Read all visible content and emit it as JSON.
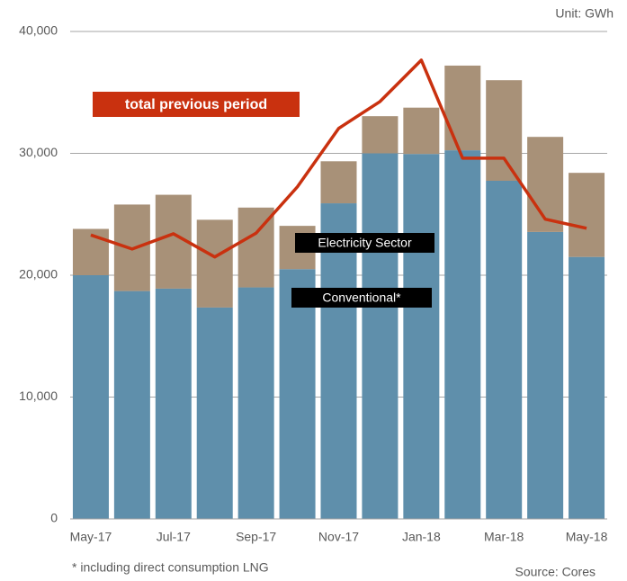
{
  "chart_data": {
    "type": "stacked-bar-line",
    "unit": "Unit: GWh",
    "footnote": "* including direct consumption LNG",
    "source": "Source: Cores",
    "categories": [
      "May-17",
      null,
      "Jul-17",
      null,
      "Sep-17",
      null,
      "Nov-17",
      null,
      "Jan-18",
      null,
      "Mar-18",
      null,
      "May-18"
    ],
    "series": [
      {
        "name": "Conventional*",
        "kind": "bar",
        "color": "#5f8fab",
        "values": [
          20000,
          18700,
          18900,
          17350,
          19000,
          20500,
          25900,
          30000,
          29950,
          30250,
          27750,
          23550,
          21500
        ]
      },
      {
        "name": "Electricity Sector",
        "kind": "bar",
        "color": "#a89178",
        "values": [
          3800,
          7100,
          7700,
          7200,
          6550,
          3550,
          3450,
          3050,
          3800,
          6950,
          8250,
          7800,
          6900
        ]
      },
      {
        "name": "total previous period",
        "kind": "line",
        "color": "#c9310f",
        "values": [
          23300,
          22150,
          23400,
          21500,
          23450,
          27250,
          32050,
          34250,
          37650,
          29600,
          29600,
          24600,
          23850
        ]
      }
    ],
    "ylim": [
      0,
      40000
    ],
    "yticks": [
      0,
      {
        "value": 10000,
        "label": "10,000"
      },
      {
        "value": 20000,
        "label": "20,000"
      },
      {
        "value": 30000,
        "label": "30,000"
      },
      {
        "value": 40000,
        "label": "40,000"
      }
    ],
    "grid": true
  }
}
